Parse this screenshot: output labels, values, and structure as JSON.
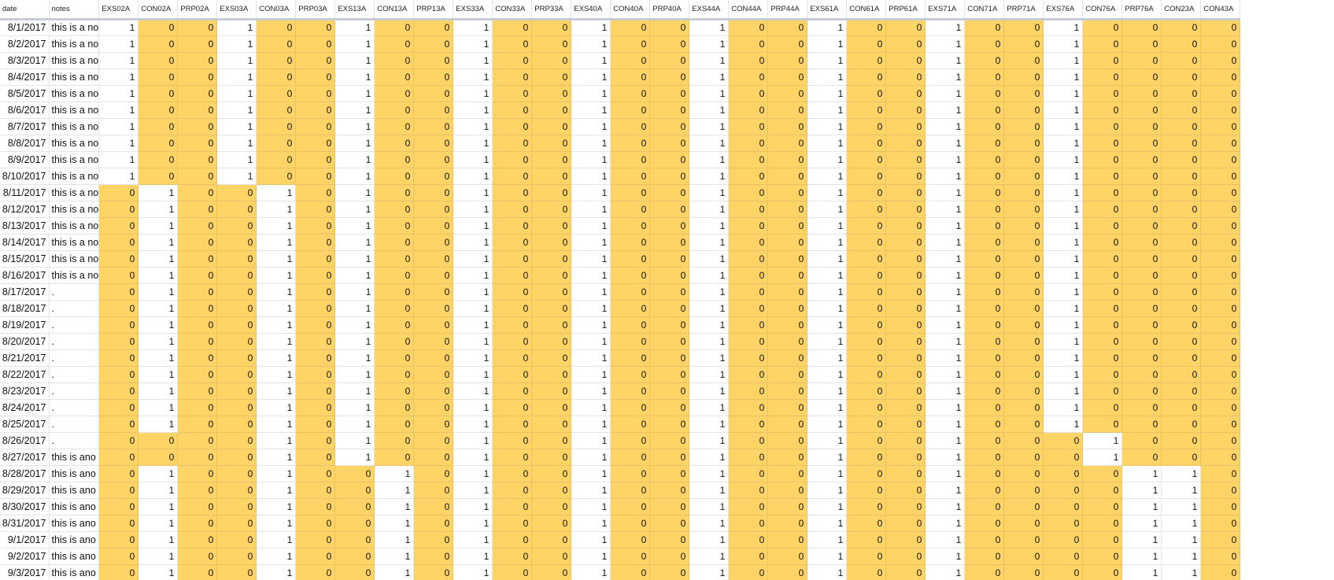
{
  "sheet": {
    "highlight_color": "#ffd466",
    "headers": [
      "date",
      "notes",
      "EXS02A",
      "CON02A",
      "PRP02A",
      "EXS03A",
      "CON03A",
      "PRP03A",
      "EXS13A",
      "CON13A",
      "PRP13A",
      "EXS33A",
      "CON33A",
      "PRP33A",
      "EXS40A",
      "CON40A",
      "PRP40A",
      "EXS44A",
      "CON44A",
      "PRP44A",
      "EXS61A",
      "CON61A",
      "PRP61A",
      "EXS71A",
      "CON71A",
      "PRP71A",
      "EXS76A",
      "CON76A",
      "PRP76A",
      "CON23A",
      "CON43A"
    ],
    "rows": [
      {
        "date": "8/1/2017",
        "note": "this is a no",
        "values": [
          "1",
          "0",
          "0",
          "1",
          "0",
          "0",
          "1",
          "0",
          "0",
          "1",
          "0",
          "0",
          "1",
          "0",
          "0",
          "1",
          "0",
          "0",
          "1",
          "0",
          "0",
          "1",
          "0",
          "0",
          "1",
          "0",
          "0",
          "0",
          "0"
        ]
      },
      {
        "date": "8/2/2017",
        "note": "this is a no",
        "values": [
          "1",
          "0",
          "0",
          "1",
          "0",
          "0",
          "1",
          "0",
          "0",
          "1",
          "0",
          "0",
          "1",
          "0",
          "0",
          "1",
          "0",
          "0",
          "1",
          "0",
          "0",
          "1",
          "0",
          "0",
          "1",
          "0",
          "0",
          "0",
          "0"
        ]
      },
      {
        "date": "8/3/2017",
        "note": "this is a no",
        "values": [
          "1",
          "0",
          "0",
          "1",
          "0",
          "0",
          "1",
          "0",
          "0",
          "1",
          "0",
          "0",
          "1",
          "0",
          "0",
          "1",
          "0",
          "0",
          "1",
          "0",
          "0",
          "1",
          "0",
          "0",
          "1",
          "0",
          "0",
          "0",
          "0"
        ]
      },
      {
        "date": "8/4/2017",
        "note": "this is a no",
        "values": [
          "1",
          "0",
          "0",
          "1",
          "0",
          "0",
          "1",
          "0",
          "0",
          "1",
          "0",
          "0",
          "1",
          "0",
          "0",
          "1",
          "0",
          "0",
          "1",
          "0",
          "0",
          "1",
          "0",
          "0",
          "1",
          "0",
          "0",
          "0",
          "0"
        ]
      },
      {
        "date": "8/5/2017",
        "note": "this is a no",
        "values": [
          "1",
          "0",
          "0",
          "1",
          "0",
          "0",
          "1",
          "0",
          "0",
          "1",
          "0",
          "0",
          "1",
          "0",
          "0",
          "1",
          "0",
          "0",
          "1",
          "0",
          "0",
          "1",
          "0",
          "0",
          "1",
          "0",
          "0",
          "0",
          "0"
        ]
      },
      {
        "date": "8/6/2017",
        "note": "this is a no",
        "values": [
          "1",
          "0",
          "0",
          "1",
          "0",
          "0",
          "1",
          "0",
          "0",
          "1",
          "0",
          "0",
          "1",
          "0",
          "0",
          "1",
          "0",
          "0",
          "1",
          "0",
          "0",
          "1",
          "0",
          "0",
          "1",
          "0",
          "0",
          "0",
          "0"
        ]
      },
      {
        "date": "8/7/2017",
        "note": "this is a no",
        "values": [
          "1",
          "0",
          "0",
          "1",
          "0",
          "0",
          "1",
          "0",
          "0",
          "1",
          "0",
          "0",
          "1",
          "0",
          "0",
          "1",
          "0",
          "0",
          "1",
          "0",
          "0",
          "1",
          "0",
          "0",
          "1",
          "0",
          "0",
          "0",
          "0"
        ]
      },
      {
        "date": "8/8/2017",
        "note": "this is a no",
        "values": [
          "1",
          "0",
          "0",
          "1",
          "0",
          "0",
          "1",
          "0",
          "0",
          "1",
          "0",
          "0",
          "1",
          "0",
          "0",
          "1",
          "0",
          "0",
          "1",
          "0",
          "0",
          "1",
          "0",
          "0",
          "1",
          "0",
          "0",
          "0",
          "0"
        ]
      },
      {
        "date": "8/9/2017",
        "note": "this is a no",
        "values": [
          "1",
          "0",
          "0",
          "1",
          "0",
          "0",
          "1",
          "0",
          "0",
          "1",
          "0",
          "0",
          "1",
          "0",
          "0",
          "1",
          "0",
          "0",
          "1",
          "0",
          "0",
          "1",
          "0",
          "0",
          "1",
          "0",
          "0",
          "0",
          "0"
        ]
      },
      {
        "date": "8/10/2017",
        "note": "this is a no",
        "values": [
          "1",
          "0",
          "0",
          "1",
          "0",
          "0",
          "1",
          "0",
          "0",
          "1",
          "0",
          "0",
          "1",
          "0",
          "0",
          "1",
          "0",
          "0",
          "1",
          "0",
          "0",
          "1",
          "0",
          "0",
          "1",
          "0",
          "0",
          "0",
          "0"
        ]
      },
      {
        "date": "8/11/2017",
        "note": "this is a no",
        "values": [
          "0",
          "1",
          "0",
          "0",
          "1",
          "0",
          "1",
          "0",
          "0",
          "1",
          "0",
          "0",
          "1",
          "0",
          "0",
          "1",
          "0",
          "0",
          "1",
          "0",
          "0",
          "1",
          "0",
          "0",
          "1",
          "0",
          "0",
          "0",
          "0"
        ]
      },
      {
        "date": "8/12/2017",
        "note": "this is a no",
        "values": [
          "0",
          "1",
          "0",
          "0",
          "1",
          "0",
          "1",
          "0",
          "0",
          "1",
          "0",
          "0",
          "1",
          "0",
          "0",
          "1",
          "0",
          "0",
          "1",
          "0",
          "0",
          "1",
          "0",
          "0",
          "1",
          "0",
          "0",
          "0",
          "0"
        ]
      },
      {
        "date": "8/13/2017",
        "note": "this is a no",
        "values": [
          "0",
          "1",
          "0",
          "0",
          "1",
          "0",
          "1",
          "0",
          "0",
          "1",
          "0",
          "0",
          "1",
          "0",
          "0",
          "1",
          "0",
          "0",
          "1",
          "0",
          "0",
          "1",
          "0",
          "0",
          "1",
          "0",
          "0",
          "0",
          "0"
        ]
      },
      {
        "date": "8/14/2017",
        "note": "this is a no",
        "values": [
          "0",
          "1",
          "0",
          "0",
          "1",
          "0",
          "1",
          "0",
          "0",
          "1",
          "0",
          "0",
          "1",
          "0",
          "0",
          "1",
          "0",
          "0",
          "1",
          "0",
          "0",
          "1",
          "0",
          "0",
          "1",
          "0",
          "0",
          "0",
          "0"
        ]
      },
      {
        "date": "8/15/2017",
        "note": "this is a no",
        "values": [
          "0",
          "1",
          "0",
          "0",
          "1",
          "0",
          "1",
          "0",
          "0",
          "1",
          "0",
          "0",
          "1",
          "0",
          "0",
          "1",
          "0",
          "0",
          "1",
          "0",
          "0",
          "1",
          "0",
          "0",
          "1",
          "0",
          "0",
          "0",
          "0"
        ]
      },
      {
        "date": "8/16/2017",
        "note": "this is a no",
        "values": [
          "0",
          "1",
          "0",
          "0",
          "1",
          "0",
          "1",
          "0",
          "0",
          "1",
          "0",
          "0",
          "1",
          "0",
          "0",
          "1",
          "0",
          "0",
          "1",
          "0",
          "0",
          "1",
          "0",
          "0",
          "1",
          "0",
          "0",
          "0",
          "0"
        ]
      },
      {
        "date": "8/17/2017",
        "note": ".",
        "values": [
          "0",
          "1",
          "0",
          "0",
          "1",
          "0",
          "1",
          "0",
          "0",
          "1",
          "0",
          "0",
          "1",
          "0",
          "0",
          "1",
          "0",
          "0",
          "1",
          "0",
          "0",
          "1",
          "0",
          "0",
          "1",
          "0",
          "0",
          "0",
          "0"
        ]
      },
      {
        "date": "8/18/2017",
        "note": ".",
        "values": [
          "0",
          "1",
          "0",
          "0",
          "1",
          "0",
          "1",
          "0",
          "0",
          "1",
          "0",
          "0",
          "1",
          "0",
          "0",
          "1",
          "0",
          "0",
          "1",
          "0",
          "0",
          "1",
          "0",
          "0",
          "1",
          "0",
          "0",
          "0",
          "0"
        ]
      },
      {
        "date": "8/19/2017",
        "note": ".",
        "values": [
          "0",
          "1",
          "0",
          "0",
          "1",
          "0",
          "1",
          "0",
          "0",
          "1",
          "0",
          "0",
          "1",
          "0",
          "0",
          "1",
          "0",
          "0",
          "1",
          "0",
          "0",
          "1",
          "0",
          "0",
          "1",
          "0",
          "0",
          "0",
          "0"
        ]
      },
      {
        "date": "8/20/2017",
        "note": ".",
        "values": [
          "0",
          "1",
          "0",
          "0",
          "1",
          "0",
          "1",
          "0",
          "0",
          "1",
          "0",
          "0",
          "1",
          "0",
          "0",
          "1",
          "0",
          "0",
          "1",
          "0",
          "0",
          "1",
          "0",
          "0",
          "1",
          "0",
          "0",
          "0",
          "0"
        ]
      },
      {
        "date": "8/21/2017",
        "note": ".",
        "values": [
          "0",
          "1",
          "0",
          "0",
          "1",
          "0",
          "1",
          "0",
          "0",
          "1",
          "0",
          "0",
          "1",
          "0",
          "0",
          "1",
          "0",
          "0",
          "1",
          "0",
          "0",
          "1",
          "0",
          "0",
          "1",
          "0",
          "0",
          "0",
          "0"
        ]
      },
      {
        "date": "8/22/2017",
        "note": ".",
        "values": [
          "0",
          "1",
          "0",
          "0",
          "1",
          "0",
          "1",
          "0",
          "0",
          "1",
          "0",
          "0",
          "1",
          "0",
          "0",
          "1",
          "0",
          "0",
          "1",
          "0",
          "0",
          "1",
          "0",
          "0",
          "1",
          "0",
          "0",
          "0",
          "0"
        ]
      },
      {
        "date": "8/23/2017",
        "note": ".",
        "values": [
          "0",
          "1",
          "0",
          "0",
          "1",
          "0",
          "1",
          "0",
          "0",
          "1",
          "0",
          "0",
          "1",
          "0",
          "0",
          "1",
          "0",
          "0",
          "1",
          "0",
          "0",
          "1",
          "0",
          "0",
          "1",
          "0",
          "0",
          "0",
          "0"
        ]
      },
      {
        "date": "8/24/2017",
        "note": ".",
        "values": [
          "0",
          "1",
          "0",
          "0",
          "1",
          "0",
          "1",
          "0",
          "0",
          "1",
          "0",
          "0",
          "1",
          "0",
          "0",
          "1",
          "0",
          "0",
          "1",
          "0",
          "0",
          "1",
          "0",
          "0",
          "1",
          "0",
          "0",
          "0",
          "0"
        ]
      },
      {
        "date": "8/25/2017",
        "note": ".",
        "values": [
          "0",
          "1",
          "0",
          "0",
          "1",
          "0",
          "1",
          "0",
          "0",
          "1",
          "0",
          "0",
          "1",
          "0",
          "0",
          "1",
          "0",
          "0",
          "1",
          "0",
          "0",
          "1",
          "0",
          "0",
          "1",
          "0",
          "0",
          "0",
          "0"
        ]
      },
      {
        "date": "8/26/2017",
        "note": ".",
        "values": [
          "0",
          "0",
          "0",
          "0",
          "1",
          "0",
          "1",
          "0",
          "0",
          "1",
          "0",
          "0",
          "1",
          "0",
          "0",
          "1",
          "0",
          "0",
          "1",
          "0",
          "0",
          "1",
          "0",
          "0",
          "0",
          "1",
          "0",
          "0",
          "0"
        ]
      },
      {
        "date": "8/27/2017",
        "note": "this is ano",
        "values": [
          "0",
          "0",
          "0",
          "0",
          "1",
          "0",
          "1",
          "0",
          "0",
          "1",
          "0",
          "0",
          "1",
          "0",
          "0",
          "1",
          "0",
          "0",
          "1",
          "0",
          "0",
          "1",
          "0",
          "0",
          "0",
          "1",
          "0",
          "0",
          "0"
        ]
      },
      {
        "date": "8/28/2017",
        "note": "this is ano",
        "values": [
          "0",
          "1",
          "0",
          "0",
          "1",
          "0",
          "0",
          "1",
          "0",
          "1",
          "0",
          "0",
          "1",
          "0",
          "0",
          "1",
          "0",
          "0",
          "1",
          "0",
          "0",
          "1",
          "0",
          "0",
          "0",
          "0",
          "1",
          "1",
          "0"
        ]
      },
      {
        "date": "8/29/2017",
        "note": "this is ano",
        "values": [
          "0",
          "1",
          "0",
          "0",
          "1",
          "0",
          "0",
          "1",
          "0",
          "1",
          "0",
          "0",
          "1",
          "0",
          "0",
          "1",
          "0",
          "0",
          "1",
          "0",
          "0",
          "1",
          "0",
          "0",
          "0",
          "0",
          "1",
          "1",
          "0"
        ]
      },
      {
        "date": "8/30/2017",
        "note": "this is ano",
        "values": [
          "0",
          "1",
          "0",
          "0",
          "1",
          "0",
          "0",
          "1",
          "0",
          "1",
          "0",
          "0",
          "1",
          "0",
          "0",
          "1",
          "0",
          "0",
          "1",
          "0",
          "0",
          "1",
          "0",
          "0",
          "0",
          "0",
          "1",
          "1",
          "0"
        ]
      },
      {
        "date": "8/31/2017",
        "note": "this is ano",
        "values": [
          "0",
          "1",
          "0",
          "0",
          "1",
          "0",
          "0",
          "1",
          "0",
          "1",
          "0",
          "0",
          "1",
          "0",
          "0",
          "1",
          "0",
          "0",
          "1",
          "0",
          "0",
          "1",
          "0",
          "0",
          "0",
          "0",
          "1",
          "1",
          "0"
        ]
      },
      {
        "date": "9/1/2017",
        "note": "this is ano",
        "values": [
          "0",
          "1",
          "0",
          "0",
          "1",
          "0",
          "0",
          "1",
          "0",
          "1",
          "0",
          "0",
          "1",
          "0",
          "0",
          "1",
          "0",
          "0",
          "1",
          "0",
          "0",
          "1",
          "0",
          "0",
          "0",
          "0",
          "1",
          "1",
          "0"
        ]
      },
      {
        "date": "9/2/2017",
        "note": "this is ano",
        "values": [
          "0",
          "1",
          "0",
          "0",
          "1",
          "0",
          "0",
          "1",
          "0",
          "1",
          "0",
          "0",
          "1",
          "0",
          "0",
          "1",
          "0",
          "0",
          "1",
          "0",
          "0",
          "1",
          "0",
          "0",
          "0",
          "0",
          "1",
          "1",
          "0"
        ]
      },
      {
        "date": "9/3/2017",
        "note": "this is ano",
        "values": [
          "0",
          "1",
          "0",
          "0",
          "1",
          "0",
          "0",
          "1",
          "0",
          "1",
          "0",
          "0",
          "1",
          "0",
          "0",
          "1",
          "0",
          "0",
          "1",
          "0",
          "0",
          "1",
          "0",
          "0",
          "0",
          "0",
          "1",
          "1",
          "0"
        ]
      }
    ]
  }
}
